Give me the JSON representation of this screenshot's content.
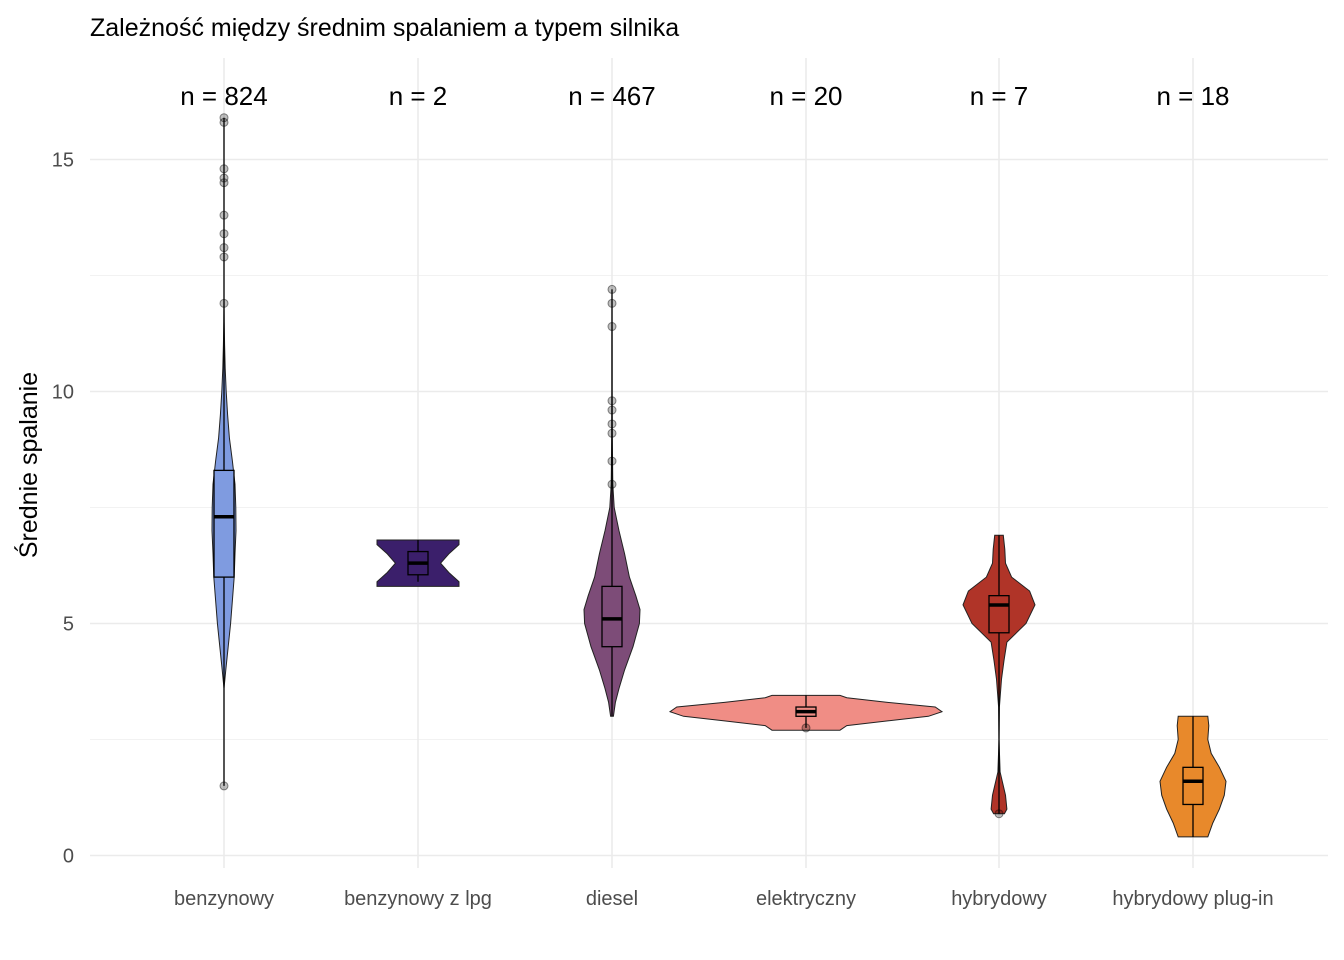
{
  "chart_data": {
    "type": "violin",
    "title": "Zależność między średnim spalaniem a typem silnika",
    "xlabel": "",
    "ylabel": "Średnie spalanie",
    "ylim": [
      -0.3,
      17.0
    ],
    "yticks": [
      0,
      5,
      10,
      15
    ],
    "grid": true,
    "legend": "none",
    "categories": [
      "benzynowy",
      "benzynowy z lpg",
      "diesel",
      "elektryczny",
      "hybrydowy",
      "hybrydowy plug-in"
    ],
    "counts": [
      "n = 824",
      "n = 2",
      "n = 467",
      "n = 20",
      "n = 7",
      "n = 18"
    ],
    "series": [
      {
        "category": "benzynowy",
        "color": "#7f9be0",
        "box": {
          "whisker_low": 1.5,
          "q1": 6.0,
          "median": 7.3,
          "q3": 8.3,
          "whisker_high": 15.9
        },
        "outliers": [
          1.5,
          11.9,
          12.9,
          13.1,
          13.4,
          13.8,
          14.5,
          14.6,
          14.8,
          15.8,
          15.9
        ],
        "density": [
          [
            3.6,
            0.0
          ],
          [
            4.0,
            0.15
          ],
          [
            4.5,
            0.35
          ],
          [
            5.0,
            0.55
          ],
          [
            5.5,
            0.7
          ],
          [
            6.0,
            0.85
          ],
          [
            6.5,
            0.92
          ],
          [
            7.0,
            1.0
          ],
          [
            7.5,
            0.98
          ],
          [
            8.0,
            0.92
          ],
          [
            8.5,
            0.7
          ],
          [
            9.0,
            0.45
          ],
          [
            9.5,
            0.3
          ],
          [
            10.0,
            0.18
          ],
          [
            10.5,
            0.1
          ],
          [
            11.0,
            0.05
          ],
          [
            11.5,
            0.02
          ],
          [
            12.0,
            0.0
          ]
        ]
      },
      {
        "category": "benzynowy z lpg",
        "color": "#3b1f6b",
        "box": {
          "whisker_low": 5.9,
          "q1": 6.05,
          "median": 6.3,
          "q3": 6.55,
          "whisker_high": 6.8
        },
        "outliers": [],
        "density": [
          [
            5.8,
            1.0
          ],
          [
            5.9,
            1.0
          ],
          [
            6.1,
            0.75
          ],
          [
            6.3,
            0.55
          ],
          [
            6.5,
            0.75
          ],
          [
            6.7,
            1.0
          ],
          [
            6.8,
            1.0
          ]
        ]
      },
      {
        "category": "diesel",
        "color": "#7d4c78",
        "box": {
          "whisker_low": 3.0,
          "q1": 4.5,
          "median": 5.1,
          "q3": 5.8,
          "whisker_high": 12.2
        },
        "outliers": [
          8.0,
          8.5,
          9.1,
          9.3,
          9.6,
          9.8,
          11.4,
          11.9,
          12.2
        ],
        "density": [
          [
            3.0,
            0.05
          ],
          [
            3.3,
            0.12
          ],
          [
            3.6,
            0.25
          ],
          [
            4.0,
            0.45
          ],
          [
            4.5,
            0.75
          ],
          [
            5.0,
            0.98
          ],
          [
            5.3,
            1.0
          ],
          [
            5.6,
            0.85
          ],
          [
            6.0,
            0.62
          ],
          [
            6.5,
            0.45
          ],
          [
            7.0,
            0.25
          ],
          [
            7.5,
            0.08
          ],
          [
            8.0,
            0.03
          ],
          [
            9.0,
            0.01
          ],
          [
            10.0,
            0.005
          ],
          [
            11.0,
            0.003
          ],
          [
            12.2,
            0.0
          ]
        ]
      },
      {
        "category": "elektryczny",
        "color": "#f08d85",
        "box": {
          "whisker_low": 2.75,
          "q1": 3.0,
          "median": 3.1,
          "q3": 3.2,
          "whisker_high": 3.45
        },
        "outliers": [
          2.75
        ],
        "density": [
          [
            2.7,
            0.25
          ],
          [
            2.8,
            0.3
          ],
          [
            2.9,
            0.6
          ],
          [
            3.0,
            0.9
          ],
          [
            3.1,
            1.0
          ],
          [
            3.2,
            0.95
          ],
          [
            3.3,
            0.6
          ],
          [
            3.4,
            0.3
          ],
          [
            3.45,
            0.25
          ]
        ]
      },
      {
        "category": "hybrydowy",
        "color": "#b03428",
        "box": {
          "whisker_low": 0.9,
          "q1": 4.8,
          "median": 5.4,
          "q3": 5.6,
          "whisker_high": 6.9
        },
        "outliers": [
          0.9
        ],
        "density": [
          [
            0.9,
            0.15
          ],
          [
            1.0,
            0.22
          ],
          [
            1.3,
            0.18
          ],
          [
            1.8,
            0.03
          ],
          [
            2.5,
            0.0
          ],
          [
            3.2,
            0.01
          ],
          [
            3.8,
            0.07
          ],
          [
            4.2,
            0.14
          ],
          [
            4.6,
            0.22
          ],
          [
            5.0,
            0.75
          ],
          [
            5.4,
            1.0
          ],
          [
            5.7,
            0.85
          ],
          [
            6.0,
            0.35
          ],
          [
            6.3,
            0.18
          ],
          [
            6.6,
            0.16
          ],
          [
            6.9,
            0.12
          ]
        ]
      },
      {
        "category": "hybrydowy plug-in",
        "color": "#e8892b",
        "box": {
          "whisker_low": 0.4,
          "q1": 1.1,
          "median": 1.6,
          "q3": 1.9,
          "whisker_high": 3.0
        },
        "outliers": [],
        "density": [
          [
            0.4,
            0.45
          ],
          [
            0.7,
            0.6
          ],
          [
            1.0,
            0.8
          ],
          [
            1.3,
            0.95
          ],
          [
            1.6,
            1.0
          ],
          [
            1.9,
            0.8
          ],
          [
            2.2,
            0.55
          ],
          [
            2.5,
            0.45
          ],
          [
            2.8,
            0.48
          ],
          [
            3.0,
            0.45
          ]
        ]
      }
    ]
  }
}
